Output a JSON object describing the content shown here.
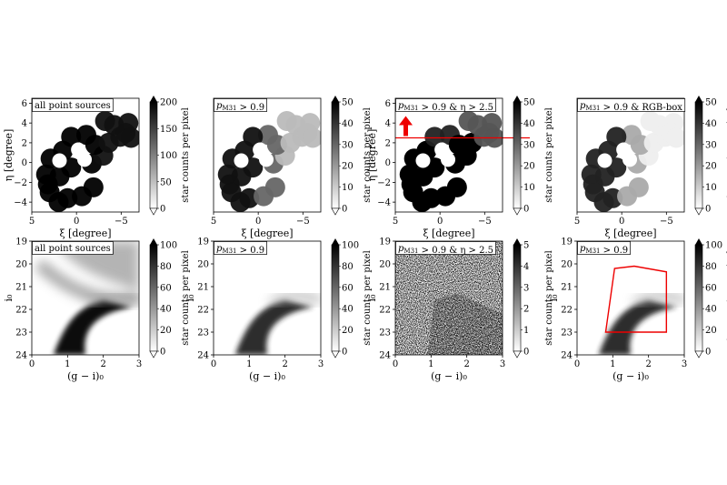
{
  "chart_data": [
    {
      "type": "heatmap",
      "label": "all point sources",
      "xlabel": "ξ [degree]",
      "ylabel": "η [degree]",
      "xlim": [
        5,
        -7
      ],
      "ylim": [
        -5,
        6.5
      ],
      "xticks": [
        "5",
        "0",
        "−5"
      ],
      "yticks": [
        "−4",
        "−2",
        "0",
        "2",
        "4",
        "6"
      ],
      "colorbar": {
        "label": "star counts per pixel",
        "min": 0,
        "max": 200,
        "ticks": [
          "0",
          "50",
          "100",
          "150",
          "200"
        ]
      }
    },
    {
      "type": "heatmap",
      "label": "p_M31 > 0.9",
      "xlabel": "ξ [degree]",
      "ylabel": "",
      "xlim": [
        5,
        -7
      ],
      "ylim": [
        -5,
        6.5
      ],
      "xticks": [
        "5",
        "0",
        "−5"
      ],
      "yticks": [],
      "colorbar": {
        "label": "star counts per pixel",
        "min": 0,
        "max": 50,
        "ticks": [
          "0",
          "10",
          "20",
          "30",
          "40",
          "50"
        ]
      }
    },
    {
      "type": "heatmap",
      "label": "p_M31 > 0.9 & η > 2.5",
      "xlabel": "ξ [degree]",
      "ylabel": "η [degree]",
      "xlim": [
        5,
        -7
      ],
      "ylim": [
        -5,
        6.5
      ],
      "xticks": [
        "5",
        "0",
        "−5"
      ],
      "yticks": [
        "−4",
        "−2",
        "0",
        "2",
        "4",
        "6"
      ],
      "colorbar": {
        "label": "star counts per pixel",
        "min": 0,
        "max": 50,
        "ticks": [
          "0",
          "10",
          "20",
          "30",
          "40",
          "50"
        ]
      },
      "annotations": {
        "cut_line_eta": 2.5,
        "arrow": "up"
      }
    },
    {
      "type": "heatmap",
      "label": "p_M31 > 0.9 & RGB-box",
      "xlabel": "ξ [degree]",
      "ylabel": "",
      "xlim": [
        5,
        -7
      ],
      "ylim": [
        -5,
        6.5
      ],
      "xticks": [
        "5",
        "0",
        "−5"
      ],
      "yticks": [],
      "colorbar": {
        "label": "star counts per pixel",
        "min": 0,
        "max": 50,
        "ticks": [
          "0",
          "10",
          "20",
          "30",
          "40",
          "50"
        ]
      }
    },
    {
      "type": "heatmap",
      "label": "all point sources",
      "xlabel": "(g − i)₀",
      "ylabel": "i₀",
      "xlim": [
        0,
        3
      ],
      "ylim": [
        24,
        19
      ],
      "xticks": [
        "0",
        "1",
        "2",
        "3"
      ],
      "yticks": [
        "19",
        "20",
        "21",
        "22",
        "23",
        "24"
      ],
      "colorbar": {
        "label": "star counts per pixel",
        "min": 0,
        "max": 100,
        "ticks": [
          "0",
          "20",
          "40",
          "60",
          "80",
          "100"
        ]
      }
    },
    {
      "type": "heatmap",
      "label": "p_M31 > 0.9",
      "xlabel": "(g − i)₀",
      "ylabel": "i₀",
      "xlim": [
        0,
        3
      ],
      "ylim": [
        24,
        19
      ],
      "xticks": [
        "0",
        "1",
        "2",
        "3"
      ],
      "yticks": [
        "19",
        "20",
        "21",
        "22",
        "23",
        "24"
      ],
      "colorbar": {
        "label": "star counts per pixel",
        "min": 0,
        "max": 100,
        "ticks": [
          "0",
          "20",
          "40",
          "60",
          "80",
          "100"
        ]
      }
    },
    {
      "type": "heatmap",
      "label": "p_M31 > 0.9 & η > 2.5",
      "xlabel": "(g − i)₀",
      "ylabel": "i₀",
      "xlim": [
        0,
        3
      ],
      "ylim": [
        24,
        19
      ],
      "xticks": [
        "0",
        "1",
        "2",
        "3"
      ],
      "yticks": [
        "19",
        "20",
        "21",
        "22",
        "23",
        "24"
      ],
      "colorbar": {
        "label": "star counts per pixel",
        "min": 0,
        "max": 5,
        "ticks": [
          "0",
          "1",
          "2",
          "3",
          "4",
          "5"
        ]
      }
    },
    {
      "type": "heatmap",
      "label": "p_M31 > 0.9",
      "xlabel": "(g − i)₀",
      "ylabel": "i₀",
      "xlim": [
        0,
        3
      ],
      "ylim": [
        24,
        19
      ],
      "xticks": [
        "0",
        "1",
        "2",
        "3"
      ],
      "yticks": [
        "19",
        "20",
        "21",
        "22",
        "23",
        "24"
      ],
      "colorbar": {
        "label": "star counts per pixel",
        "min": 0,
        "max": 100,
        "ticks": [
          "0",
          "20",
          "40",
          "60",
          "80",
          "100"
        ]
      },
      "annotations": {
        "rgb_box_polygon": [
          [
            0.8,
            23.0
          ],
          [
            2.5,
            23.0
          ],
          [
            2.5,
            20.35
          ],
          [
            1.6,
            20.1
          ],
          [
            1.05,
            20.2
          ]
        ]
      }
    }
  ]
}
